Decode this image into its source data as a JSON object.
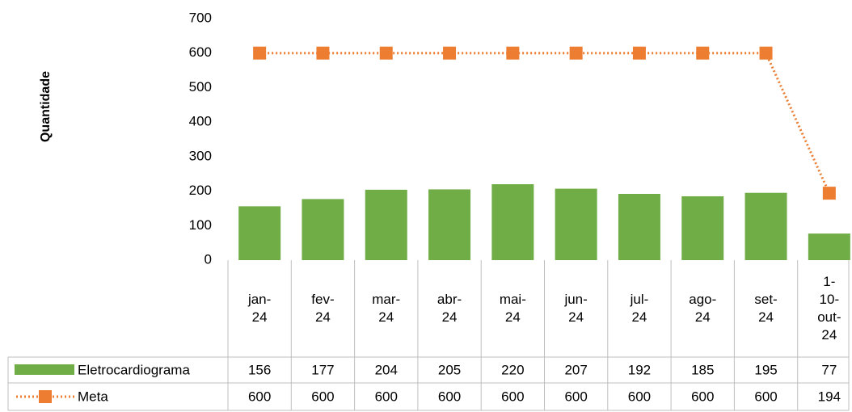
{
  "chart_data": {
    "type": "bar",
    "y_label": "Quantidade",
    "categories": [
      "jan-24",
      "fev-24",
      "mar-24",
      "abr-24",
      "mai-24",
      "jun-24",
      "jul-24",
      "ago-24",
      "set-24",
      "1-10-out-24"
    ],
    "series": [
      {
        "name": "Eletrocardiograma",
        "type": "bar",
        "color": "#70ad47",
        "values": [
          156,
          177,
          204,
          205,
          220,
          207,
          192,
          185,
          195,
          77
        ]
      },
      {
        "name": "Meta",
        "type": "line",
        "color": "#ed7d31",
        "values": [
          600,
          600,
          600,
          600,
          600,
          600,
          600,
          600,
          600,
          194
        ]
      }
    ],
    "ylim": [
      0,
      700
    ],
    "yticks": [
      0,
      100,
      200,
      300,
      400,
      500,
      600,
      700
    ],
    "grid": false,
    "data_table": true
  }
}
